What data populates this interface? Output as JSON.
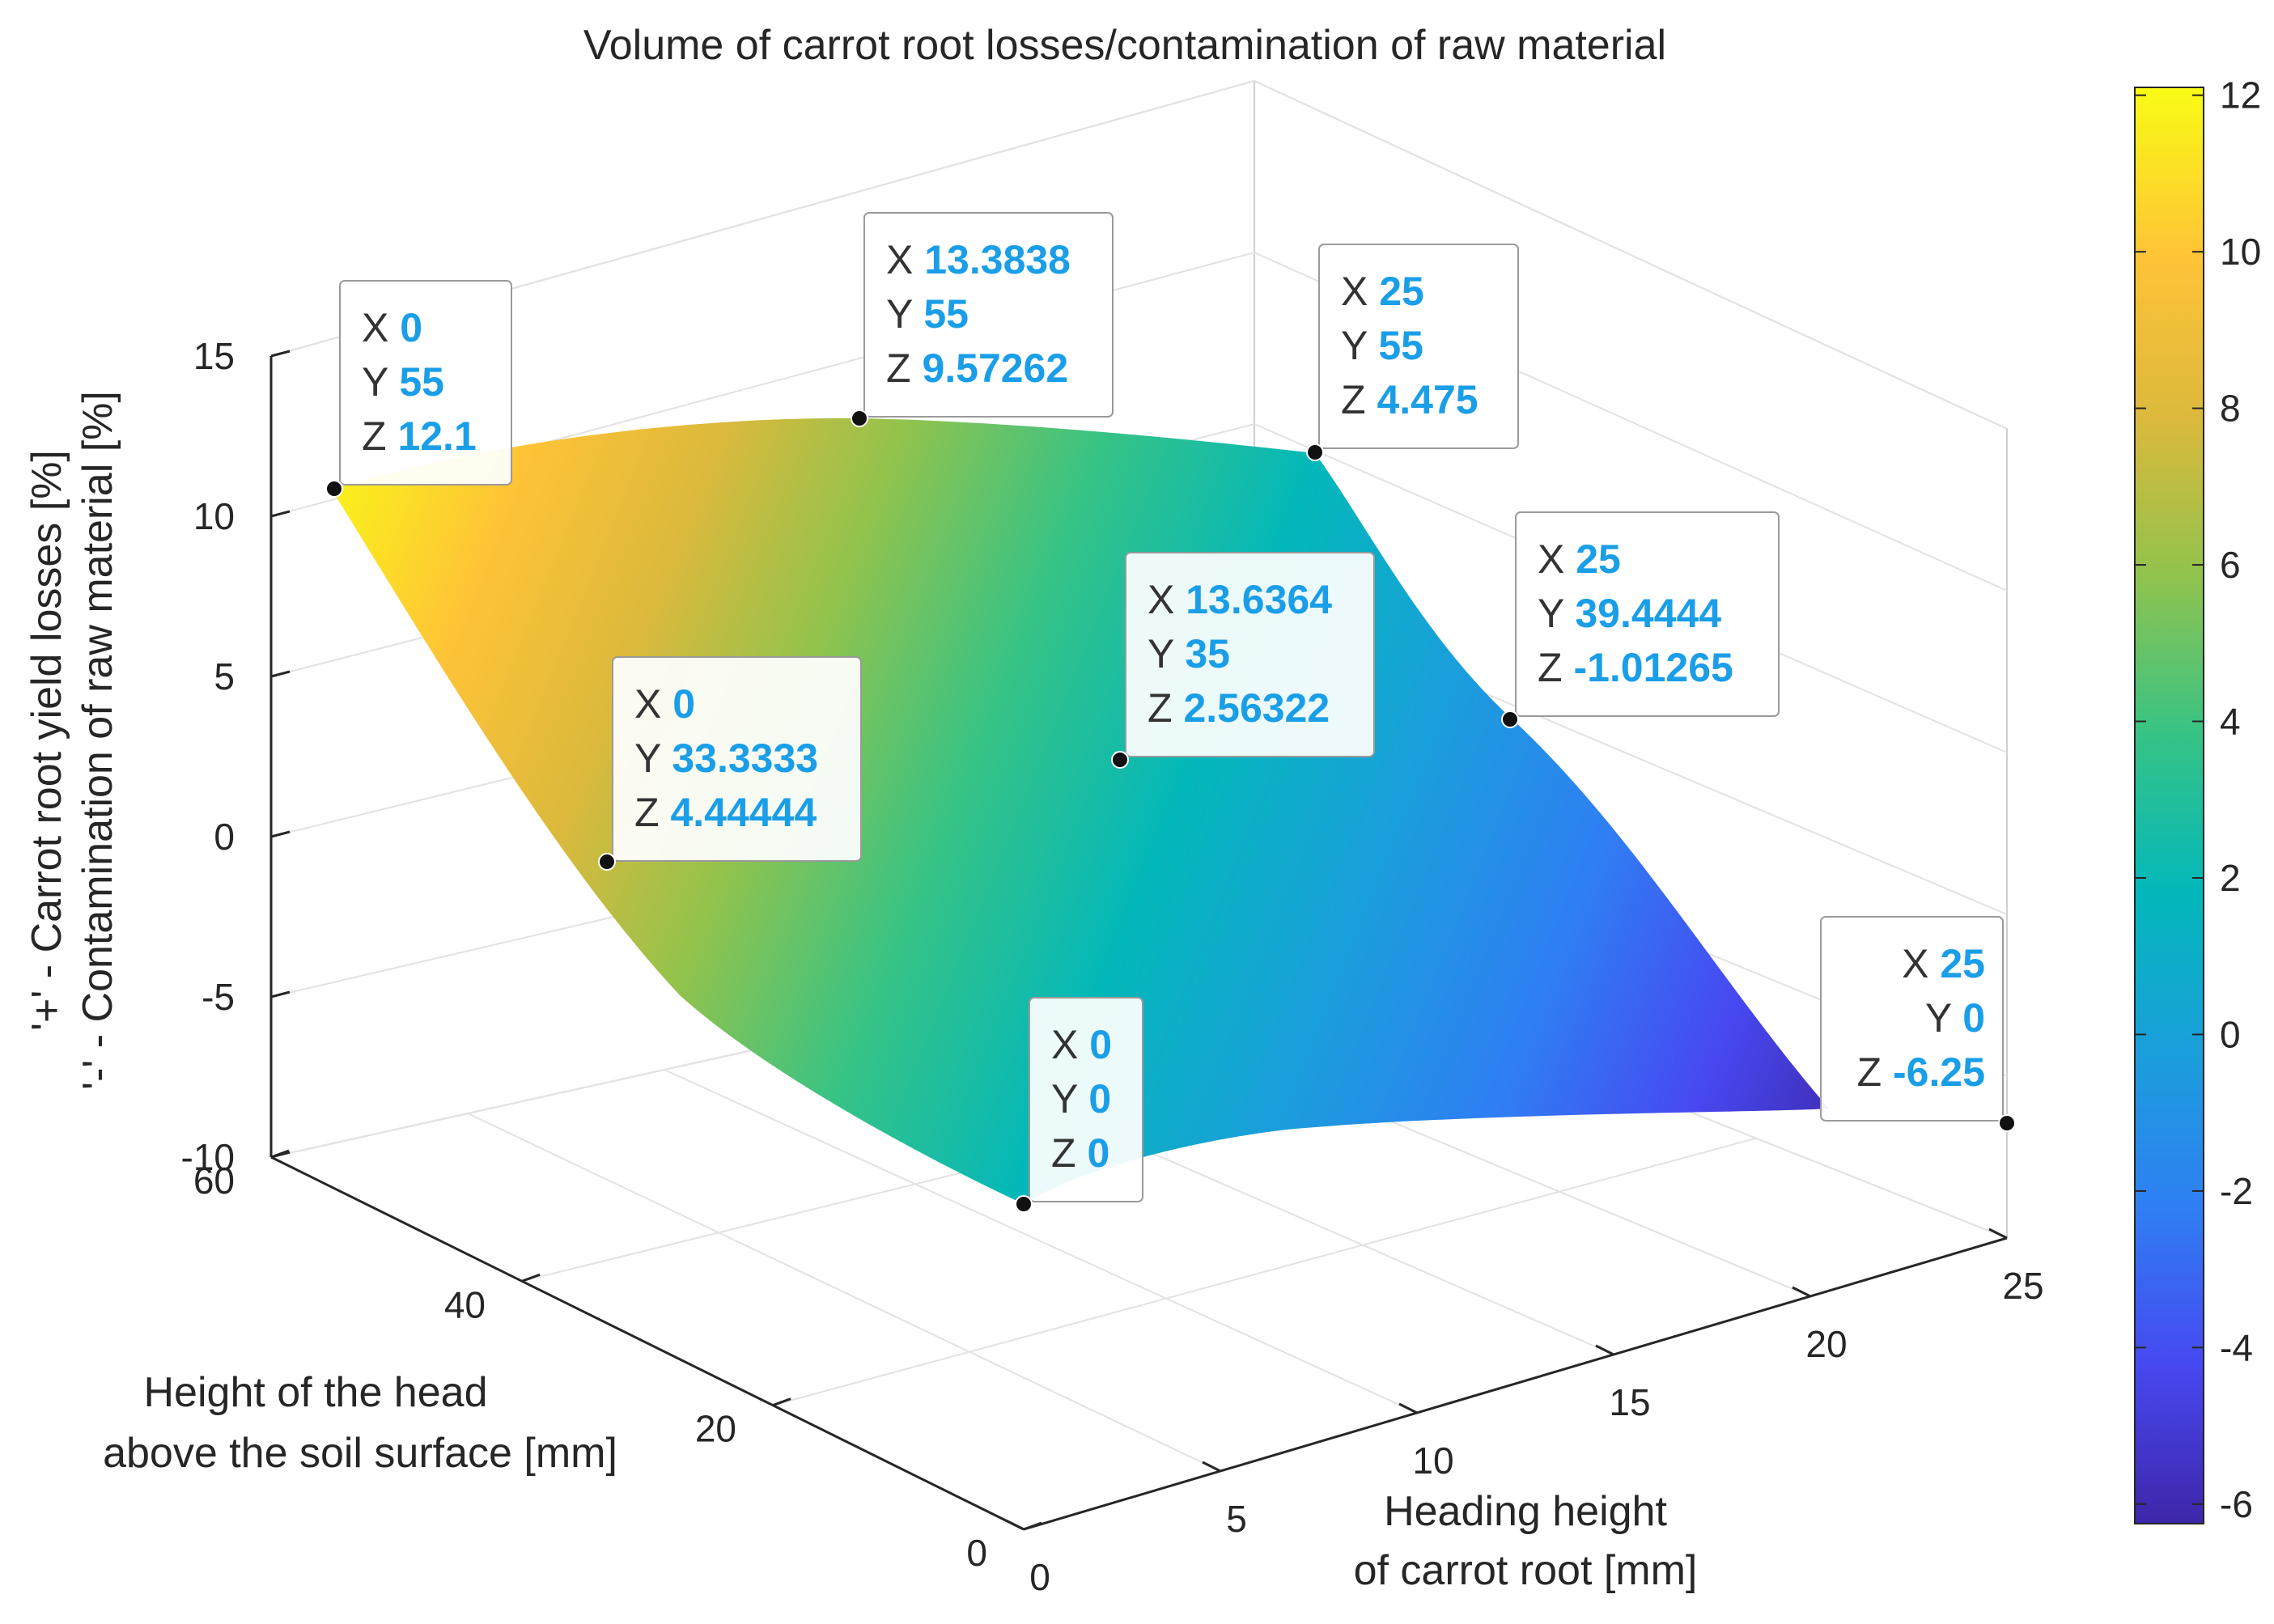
{
  "chart_data": {
    "type": "surface3d",
    "title": "Volume of carrot root losses/contamination of raw material",
    "xlabel": [
      "Heading height",
      "of carrot root [mm]"
    ],
    "ylabel": [
      "Height of the head",
      "above the soil surface [mm]"
    ],
    "zlabel": [
      "'+' - Carrot root yield losses [%]",
      "'-' - Contamination of raw material [%]"
    ],
    "x_ticks": [
      "0",
      "5",
      "10",
      "15",
      "20",
      "25"
    ],
    "y_ticks": [
      "0",
      "20",
      "40",
      "60"
    ],
    "z_ticks": [
      "15",
      "10",
      "5",
      "0",
      "-5",
      "-10"
    ],
    "xlim": [
      0,
      25
    ],
    "ylim": [
      0,
      60
    ],
    "zlim": [
      -10,
      15
    ],
    "colormap": "parula",
    "colorbar": {
      "ticks": [
        "12",
        "10",
        "8",
        "6",
        "4",
        "2",
        "0",
        "-2",
        "-4",
        "-6"
      ],
      "range": [
        -6.25,
        12.1
      ]
    },
    "colors": [
      "#3e26a8",
      "#4748f1",
      "#2f7ff3",
      "#1a9fdb",
      "#03b8ba",
      "#37c385",
      "#91c34d",
      "#dcb93c",
      "#fec337",
      "#f9fb15"
    ],
    "datatips": [
      {
        "X": "0",
        "Y": "55",
        "Z": "12.1"
      },
      {
        "X": "13.3838",
        "Y": "55",
        "Z": "9.57262"
      },
      {
        "X": "25",
        "Y": "55",
        "Z": "4.475"
      },
      {
        "X": "25",
        "Y": "39.4444",
        "Z": "-1.01265"
      },
      {
        "X": "13.6364",
        "Y": "35",
        "Z": "2.56322"
      },
      {
        "X": "0",
        "Y": "33.3333",
        "Z": "4.44444"
      },
      {
        "X": "0",
        "Y": "0",
        "Z": "0"
      },
      {
        "X": "25",
        "Y": "0",
        "Z": "-6.25"
      }
    ]
  }
}
